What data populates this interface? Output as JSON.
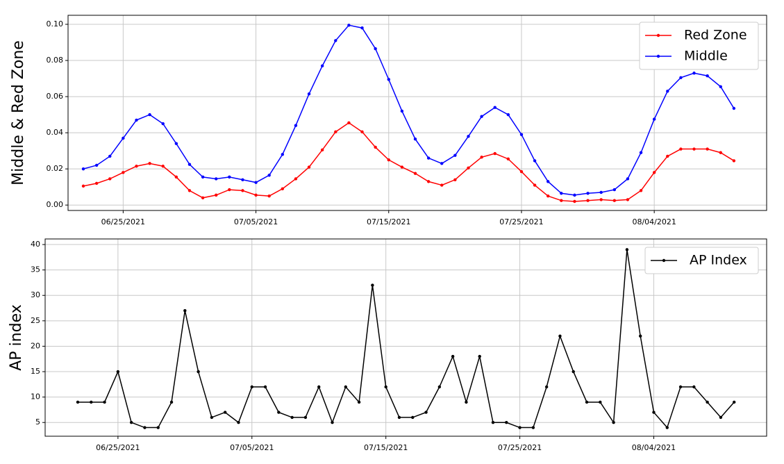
{
  "chart_data": [
    {
      "type": "line",
      "ylabel": "Middle & Red Zone",
      "x": [
        "06/22/2021",
        "06/23/2021",
        "06/24/2021",
        "06/25/2021",
        "06/26/2021",
        "06/27/2021",
        "06/28/2021",
        "06/29/2021",
        "06/30/2021",
        "07/01/2021",
        "07/02/2021",
        "07/03/2021",
        "07/04/2021",
        "07/05/2021",
        "07/06/2021",
        "07/07/2021",
        "07/08/2021",
        "07/09/2021",
        "07/10/2021",
        "07/11/2021",
        "07/12/2021",
        "07/13/2021",
        "07/14/2021",
        "07/15/2021",
        "07/16/2021",
        "07/17/2021",
        "07/18/2021",
        "07/19/2021",
        "07/20/2021",
        "07/21/2021",
        "07/22/2021",
        "07/23/2021",
        "07/24/2021",
        "07/25/2021",
        "07/26/2021",
        "07/27/2021",
        "07/28/2021",
        "07/29/2021",
        "07/30/2021",
        "07/31/2021",
        "08/01/2021",
        "08/02/2021",
        "08/03/2021",
        "08/04/2021",
        "08/05/2021",
        "08/06/2021",
        "08/07/2021",
        "08/08/2021",
        "08/09/2021",
        "08/10/2021"
      ],
      "xticks": [
        "06/25/2021",
        "07/05/2021",
        "07/15/2021",
        "07/25/2021",
        "08/04/2021"
      ],
      "ylim": [
        -0.003,
        0.105
      ],
      "yticks": [
        {
          "value": 0,
          "label": "0.00"
        },
        {
          "value": 0.02,
          "label": "0.02"
        },
        {
          "value": 0.04,
          "label": "0.04"
        },
        {
          "value": 0.06,
          "label": "0.06"
        },
        {
          "value": 0.08,
          "label": "0.08"
        },
        {
          "value": 0.1,
          "label": "0.10"
        }
      ],
      "grid": true,
      "legend": "upper right",
      "series": [
        {
          "name": "Red Zone",
          "color": "#ff0000",
          "values": [
            0.0105,
            0.012,
            0.0145,
            0.018,
            0.0215,
            0.023,
            0.0215,
            0.0155,
            0.008,
            0.004,
            0.0055,
            0.0085,
            0.008,
            0.0055,
            0.005,
            0.009,
            0.0145,
            0.021,
            0.0305,
            0.0405,
            0.0455,
            0.0405,
            0.032,
            0.025,
            0.021,
            0.0175,
            0.013,
            0.011,
            0.014,
            0.0205,
            0.0265,
            0.0285,
            0.0255,
            0.0185,
            0.011,
            0.005,
            0.0025,
            0.002,
            0.0025,
            0.003,
            0.0025,
            0.003,
            0.008,
            0.018,
            0.027,
            0.031,
            0.031,
            0.031,
            0.029,
            0.0245
          ]
        },
        {
          "name": "Middle",
          "color": "#0000ff",
          "values": [
            0.02,
            0.022,
            0.027,
            0.037,
            0.047,
            0.05,
            0.045,
            0.034,
            0.0225,
            0.0155,
            0.0145,
            0.0155,
            0.014,
            0.0125,
            0.0165,
            0.028,
            0.044,
            0.0615,
            0.077,
            0.091,
            0.0995,
            0.098,
            0.0865,
            0.0695,
            0.052,
            0.0365,
            0.026,
            0.023,
            0.0275,
            0.038,
            0.049,
            0.054,
            0.05,
            0.039,
            0.0245,
            0.013,
            0.0065,
            0.0055,
            0.0065,
            0.007,
            0.0085,
            0.0145,
            0.029,
            0.0475,
            0.063,
            0.0705,
            0.073,
            0.0715,
            0.0655,
            0.0535
          ]
        }
      ]
    },
    {
      "type": "line",
      "ylabel": "AP index",
      "x": [
        "06/22/2021",
        "06/23/2021",
        "06/24/2021",
        "06/25/2021",
        "06/26/2021",
        "06/27/2021",
        "06/28/2021",
        "06/29/2021",
        "06/30/2021",
        "07/01/2021",
        "07/02/2021",
        "07/03/2021",
        "07/04/2021",
        "07/05/2021",
        "07/06/2021",
        "07/07/2021",
        "07/08/2021",
        "07/09/2021",
        "07/10/2021",
        "07/11/2021",
        "07/12/2021",
        "07/13/2021",
        "07/14/2021",
        "07/15/2021",
        "07/16/2021",
        "07/17/2021",
        "07/18/2021",
        "07/19/2021",
        "07/20/2021",
        "07/21/2021",
        "07/22/2021",
        "07/23/2021",
        "07/24/2021",
        "07/25/2021",
        "07/26/2021",
        "07/27/2021",
        "07/28/2021",
        "07/29/2021",
        "07/30/2021",
        "07/31/2021",
        "08/01/2021",
        "08/02/2021",
        "08/03/2021",
        "08/04/2021",
        "08/05/2021",
        "08/06/2021",
        "08/07/2021",
        "08/08/2021",
        "08/09/2021",
        "08/10/2021"
      ],
      "xticks": [
        "06/25/2021",
        "07/05/2021",
        "07/15/2021",
        "07/25/2021",
        "08/04/2021"
      ],
      "ylim": [
        2.3,
        41.1
      ],
      "yticks": [
        5,
        10,
        15,
        20,
        25,
        30,
        35,
        40
      ],
      "grid": true,
      "legend": "upper right",
      "series": [
        {
          "name": "AP Index",
          "color": "#000000",
          "values": [
            9,
            9,
            9,
            15,
            5,
            4,
            4,
            9,
            27,
            15,
            6,
            7,
            5,
            12,
            12,
            7,
            6,
            6,
            12,
            5,
            12,
            9,
            32,
            12,
            6,
            6,
            7,
            12,
            18,
            9,
            18,
            5,
            5,
            4,
            4,
            12,
            22,
            15,
            9,
            9,
            5,
            39,
            22,
            7,
            4,
            12,
            12,
            9,
            6,
            9
          ]
        }
      ]
    }
  ]
}
